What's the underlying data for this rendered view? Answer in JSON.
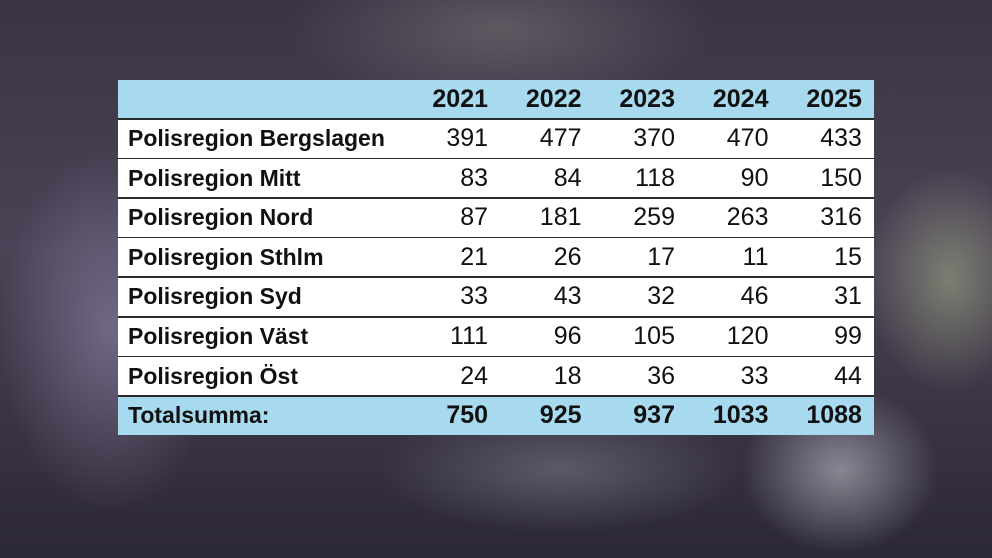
{
  "table": {
    "header": [
      "2021",
      "2022",
      "2023",
      "2024",
      "2025"
    ],
    "rows": [
      {
        "label": "Polisregion Bergslagen",
        "values": [
          391,
          477,
          370,
          470,
          433
        ]
      },
      {
        "label": "Polisregion Mitt",
        "values": [
          83,
          84,
          118,
          90,
          150
        ]
      },
      {
        "label": "Polisregion Nord",
        "values": [
          87,
          181,
          259,
          263,
          316
        ]
      },
      {
        "label": "Polisregion Sthlm",
        "values": [
          21,
          26,
          17,
          11,
          15
        ]
      },
      {
        "label": "Polisregion Syd",
        "values": [
          33,
          43,
          32,
          46,
          31
        ]
      },
      {
        "label": "Polisregion Väst",
        "values": [
          111,
          96,
          105,
          120,
          99
        ]
      },
      {
        "label": "Polisregion Öst",
        "values": [
          24,
          18,
          36,
          33,
          44
        ]
      }
    ],
    "total": {
      "label": "Totalsumma:",
      "values": [
        750,
        925,
        937,
        1033,
        1088
      ]
    }
  }
}
